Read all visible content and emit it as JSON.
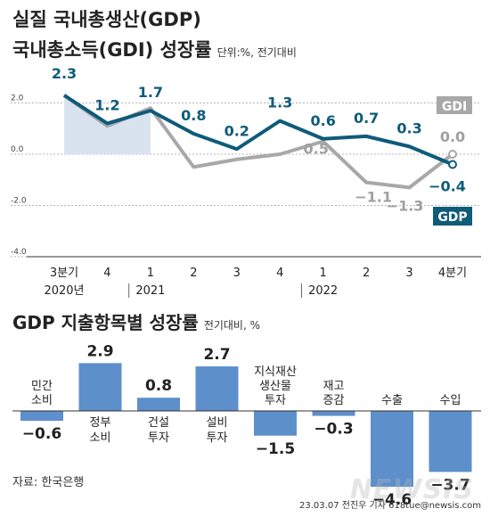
{
  "header": {
    "title_line1": "실질 국내총생산(GDP)",
    "title_line2": "국내총소득(GDI) 성장률",
    "unit": "단위:%, 전기대비"
  },
  "chart_data": [
    {
      "type": "line",
      "categories": [
        "3분기",
        "4",
        "1",
        "2",
        "3",
        "4",
        "1",
        "2",
        "3",
        "4분기"
      ],
      "year_labels": [
        "2020년",
        "2021",
        "2022"
      ],
      "ylim": [
        -4.0,
        2.6
      ],
      "yticks": [
        "2.0",
        "0.0",
        "-2.0",
        "-4.0"
      ],
      "series": [
        {
          "name": "GDP",
          "color": "#0e5b7a",
          "values": [
            2.3,
            1.2,
            1.7,
            0.8,
            0.2,
            1.3,
            0.6,
            0.7,
            0.3,
            -0.4
          ],
          "labels": [
            "2.3",
            "1.2",
            "1.7",
            "0.8",
            "0.2",
            "1.3",
            "0.6",
            "0.7",
            "0.3",
            "-0.4"
          ]
        },
        {
          "name": "GDI",
          "color": "#a8a8a8",
          "values": [
            2.3,
            1.1,
            1.8,
            -0.5,
            -0.2,
            0.0,
            0.5,
            -1.1,
            -1.3,
            0.0
          ],
          "labels": [
            "",
            "",
            "",
            "",
            "",
            "",
            "0.5",
            "-1.1",
            "-1.3",
            "0.0"
          ]
        }
      ]
    },
    {
      "type": "bar",
      "title": "GDP 지출항목별 성장률",
      "unit": "전기대비, %",
      "ylim": [
        -4.6,
        2.9
      ],
      "color": "#5d8fcb",
      "categories": [
        [
          "민간",
          "소비"
        ],
        [
          "정부",
          "소비"
        ],
        [
          "건설",
          "투자"
        ],
        [
          "설비",
          "투자"
        ],
        [
          "지식재산",
          "생산물",
          "투자"
        ],
        [
          "재고",
          "증감"
        ],
        [
          "수출"
        ],
        [
          "수입"
        ]
      ],
      "values": [
        -0.6,
        2.9,
        0.8,
        2.7,
        -1.5,
        -0.3,
        -4.6,
        -3.7
      ],
      "labels": [
        "-0.6",
        "2.9",
        "0.8",
        "2.7",
        "-1.5",
        "-0.3",
        "-4.6",
        "-3.7"
      ]
    }
  ],
  "footer": {
    "source": "자료: 한국은행",
    "credit": "23.03.07 전진우 기자 618tue@newsis.com",
    "watermark": "NEWSIS"
  }
}
